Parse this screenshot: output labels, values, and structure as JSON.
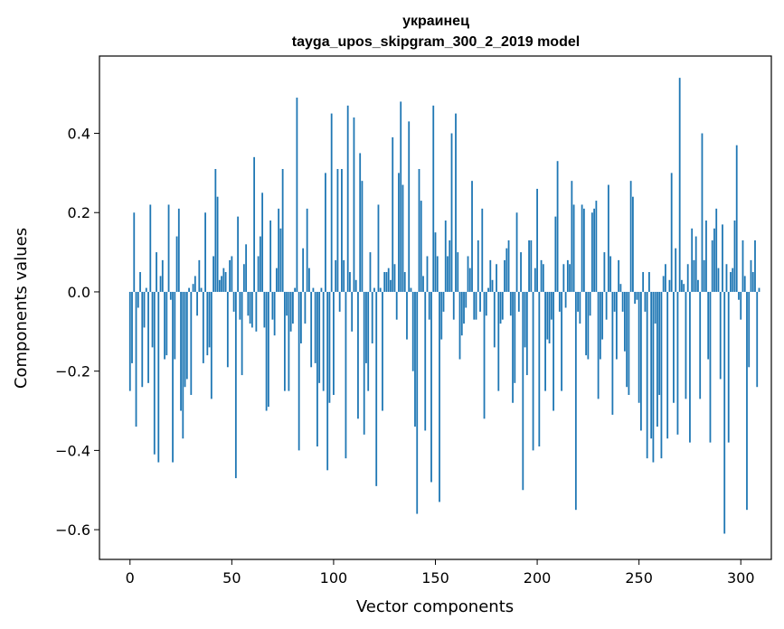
{
  "chart_data": {
    "type": "bar",
    "title": "украинец",
    "subtitle": "tayga_upos_skipgram_300_2_2019 model",
    "xlabel": "Vector components",
    "ylabel": "Components values",
    "xlim": [
      -15,
      315
    ],
    "ylim": [
      -0.675,
      0.595
    ],
    "xticks": [
      0,
      50,
      100,
      150,
      200,
      250,
      300
    ],
    "yticks": [
      -0.6,
      -0.4,
      -0.2,
      0.0,
      0.2,
      0.4
    ],
    "ytick_labels": [
      "−0.6",
      "−0.4",
      "−0.2",
      "0.0",
      "0.2",
      "0.4"
    ],
    "xtick_labels": [
      "0",
      "50",
      "100",
      "150",
      "200",
      "250",
      "300"
    ],
    "bar_color": "#1f77b4",
    "grid": false,
    "series": [
      {
        "name": "components",
        "values": [
          -0.25,
          -0.18,
          0.2,
          -0.34,
          -0.04,
          0.05,
          -0.24,
          -0.09,
          0.01,
          -0.23,
          0.22,
          -0.14,
          -0.41,
          0.1,
          -0.43,
          0.04,
          0.08,
          -0.17,
          -0.16,
          0.22,
          -0.02,
          -0.43,
          -0.17,
          0.14,
          0.21,
          -0.3,
          -0.37,
          -0.24,
          -0.22,
          0.01,
          -0.26,
          0.02,
          0.04,
          -0.06,
          0.08,
          0.01,
          -0.18,
          0.2,
          -0.16,
          -0.14,
          -0.27,
          0.09,
          0.31,
          0.24,
          0.03,
          0.04,
          0.06,
          0.05,
          -0.19,
          0.08,
          0.09,
          -0.05,
          -0.47,
          0.19,
          -0.07,
          -0.21,
          0.07,
          0.12,
          -0.06,
          -0.08,
          -0.09,
          0.34,
          -0.1,
          0.09,
          0.14,
          0.25,
          -0.09,
          -0.3,
          -0.29,
          0.18,
          -0.07,
          -0.11,
          0.06,
          0.21,
          0.16,
          0.31,
          -0.25,
          -0.06,
          -0.25,
          -0.1,
          -0.08,
          0.01,
          0.49,
          -0.4,
          -0.13,
          0.11,
          -0.08,
          0.21,
          0.06,
          -0.19,
          0.01,
          -0.18,
          -0.39,
          -0.23,
          0.01,
          -0.25,
          0.3,
          -0.45,
          -0.28,
          0.45,
          -0.26,
          0.08,
          0.31,
          -0.05,
          0.31,
          0.08,
          -0.42,
          0.47,
          0.05,
          -0.1,
          0.44,
          0.03,
          -0.32,
          0.35,
          0.28,
          -0.36,
          -0.18,
          -0.25,
          0.1,
          -0.13,
          0.01,
          -0.49,
          0.22,
          0.01,
          -0.3,
          0.05,
          0.05,
          0.06,
          0.03,
          0.39,
          0.07,
          -0.07,
          0.3,
          0.48,
          0.27,
          0.05,
          -0.12,
          0.43,
          0.01,
          -0.2,
          -0.34,
          -0.56,
          0.31,
          0.23,
          0.04,
          -0.35,
          0.09,
          -0.07,
          -0.48,
          0.47,
          0.15,
          0.09,
          -0.53,
          -0.12,
          -0.05,
          0.18,
          0.09,
          0.13,
          0.4,
          -0.07,
          0.45,
          0.1,
          -0.17,
          -0.11,
          -0.08,
          -0.04,
          0.09,
          0.06,
          0.28,
          -0.07,
          -0.07,
          0.13,
          -0.05,
          0.21,
          -0.32,
          -0.06,
          0.01,
          0.08,
          0.03,
          -0.14,
          0.07,
          -0.25,
          -0.08,
          -0.07,
          0.08,
          0.11,
          0.13,
          -0.06,
          -0.28,
          -0.23,
          0.2,
          -0.05,
          0.1,
          -0.5,
          -0.14,
          -0.21,
          0.13,
          0.13,
          -0.4,
          0.06,
          0.26,
          -0.39,
          0.08,
          0.07,
          -0.25,
          -0.12,
          -0.13,
          -0.07,
          -0.3,
          0.19,
          0.33,
          -0.05,
          -0.25,
          0.07,
          -0.04,
          0.08,
          0.07,
          0.28,
          0.22,
          -0.55,
          -0.05,
          -0.08,
          0.22,
          0.21,
          -0.16,
          -0.17,
          -0.06,
          0.2,
          0.21,
          0.23,
          -0.27,
          -0.17,
          -0.12,
          0.1,
          -0.07,
          0.27,
          0.09,
          -0.31,
          -0.05,
          -0.17,
          0.08,
          0.02,
          -0.05,
          -0.15,
          -0.24,
          -0.26,
          0.28,
          0.24,
          -0.03,
          -0.02,
          -0.28,
          -0.35,
          0.05,
          -0.05,
          -0.42,
          0.05,
          -0.37,
          -0.43,
          -0.08,
          -0.34,
          -0.26,
          -0.42,
          0.04,
          0.07,
          -0.37,
          0.03,
          0.3,
          -0.28,
          0.11,
          -0.36,
          0.54,
          0.03,
          0.02,
          -0.27,
          0.07,
          -0.38,
          0.16,
          0.08,
          0.14,
          0.03,
          -0.27,
          0.4,
          0.08,
          0.18,
          -0.17,
          -0.38,
          0.13,
          0.16,
          0.21,
          0.06,
          -0.22,
          0.17,
          -0.61,
          0.07,
          -0.38,
          0.05,
          0.06,
          0.18,
          0.37,
          -0.02,
          -0.07,
          0.13,
          0.04,
          -0.55,
          -0.19,
          0.08,
          0.05,
          0.13,
          -0.24,
          0.01
        ]
      }
    ]
  }
}
